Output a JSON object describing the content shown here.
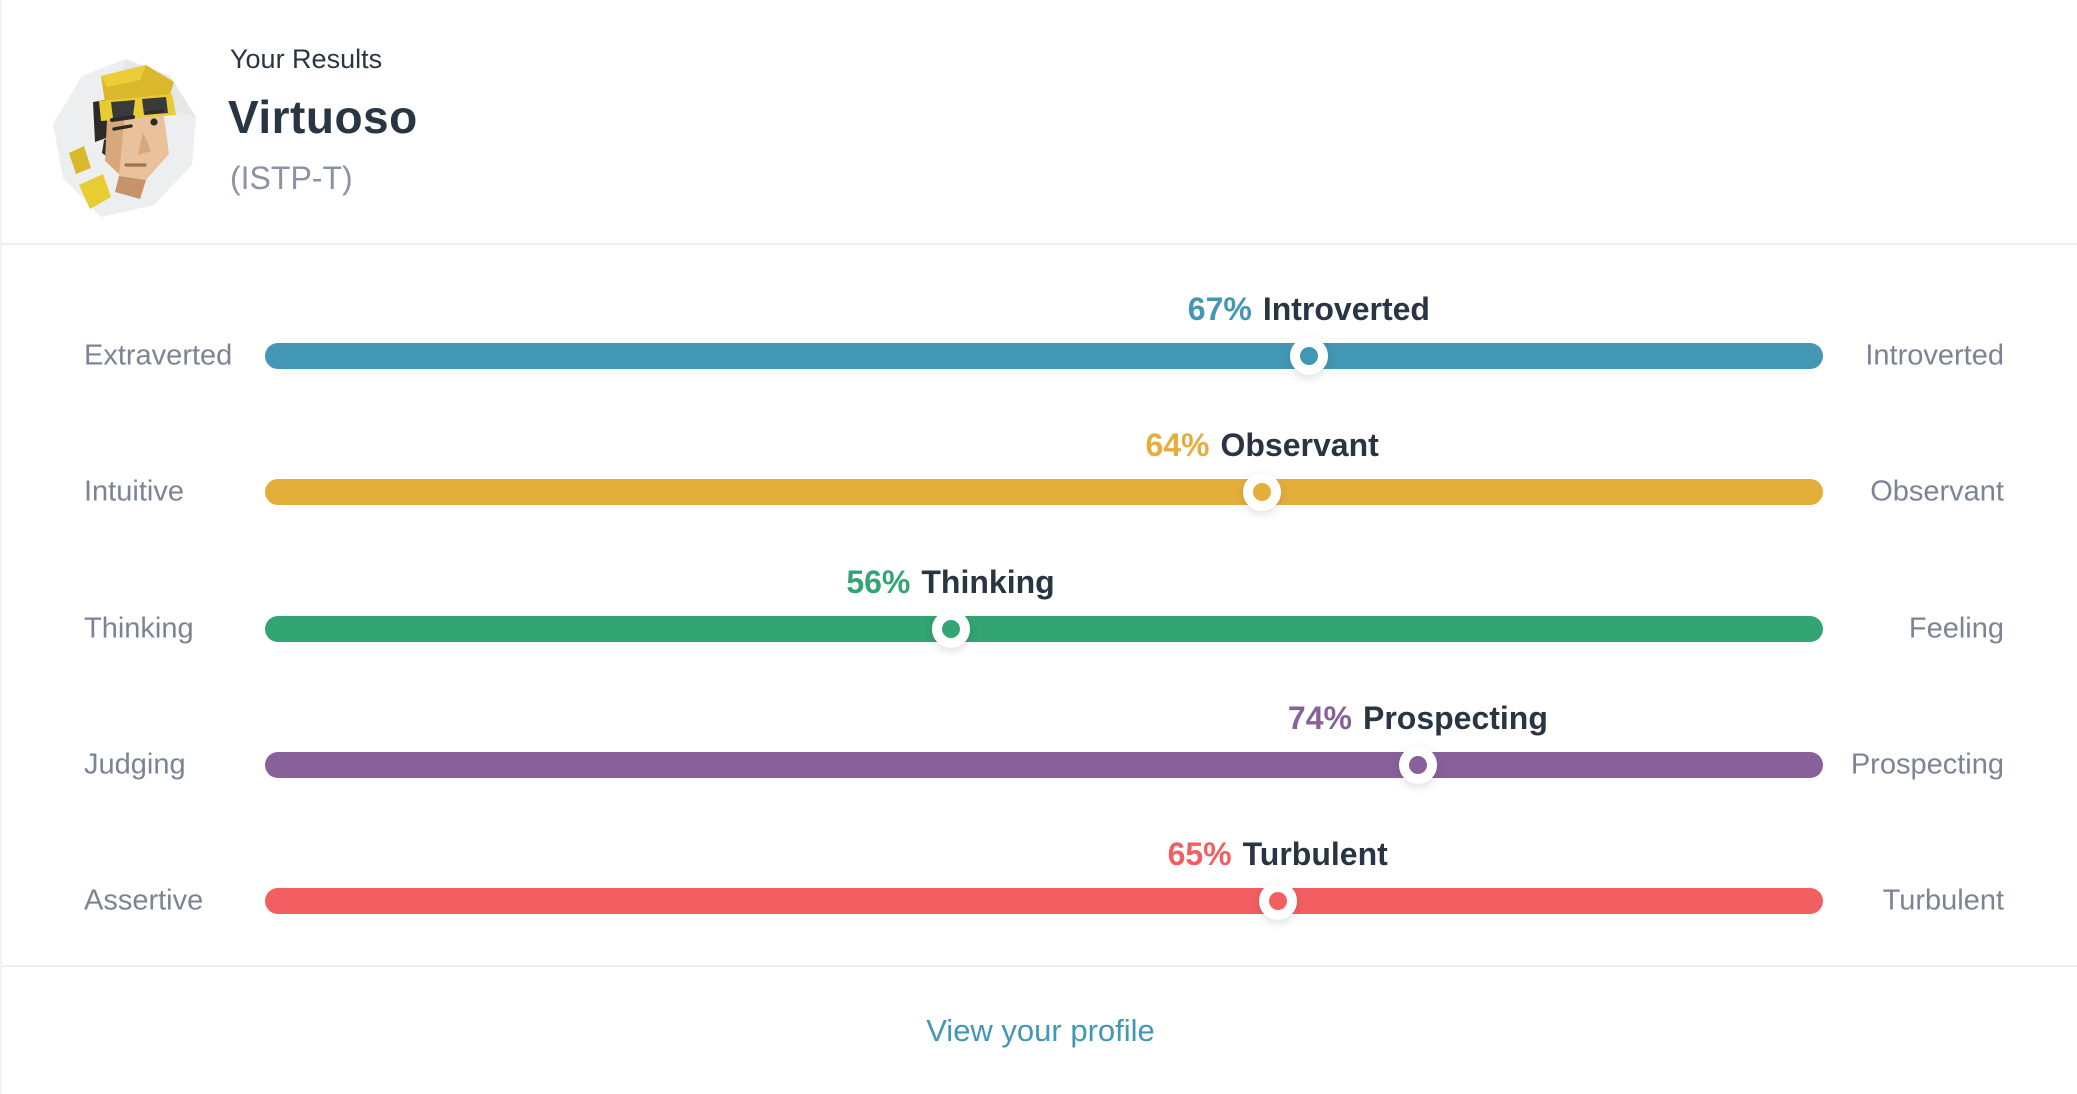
{
  "header": {
    "eyebrow": "Your Results",
    "title": "Virtuoso",
    "code": "(ISTP-T)",
    "avatar": "virtuoso-character"
  },
  "traits": [
    {
      "left": "Extraverted",
      "right": "Introverted",
      "percent": 67,
      "percent_label": "67%",
      "dominant": "Introverted",
      "winner_side": "right",
      "color": "#4298B4"
    },
    {
      "left": "Intuitive",
      "right": "Observant",
      "percent": 64,
      "percent_label": "64%",
      "dominant": "Observant",
      "winner_side": "right",
      "color": "#E4AE3A"
    },
    {
      "left": "Thinking",
      "right": "Feeling",
      "percent": 56,
      "percent_label": "56%",
      "dominant": "Thinking",
      "winner_side": "left",
      "color": "#33A474"
    },
    {
      "left": "Judging",
      "right": "Prospecting",
      "percent": 74,
      "percent_label": "74%",
      "dominant": "Prospecting",
      "winner_side": "right",
      "color": "#88619A"
    },
    {
      "left": "Assertive",
      "right": "Turbulent",
      "percent": 65,
      "percent_label": "65%",
      "dominant": "Turbulent",
      "winner_side": "right",
      "color": "#F25E62"
    }
  ],
  "footer": {
    "link_label": "View your profile",
    "link_color": "#4298B4"
  },
  "colors": {
    "dark_text": "#2A3544",
    "muted_text": "#7B8494",
    "code_text": "#8B93A2",
    "divider": "#ECEEF0",
    "background": "#FFFFFF"
  }
}
